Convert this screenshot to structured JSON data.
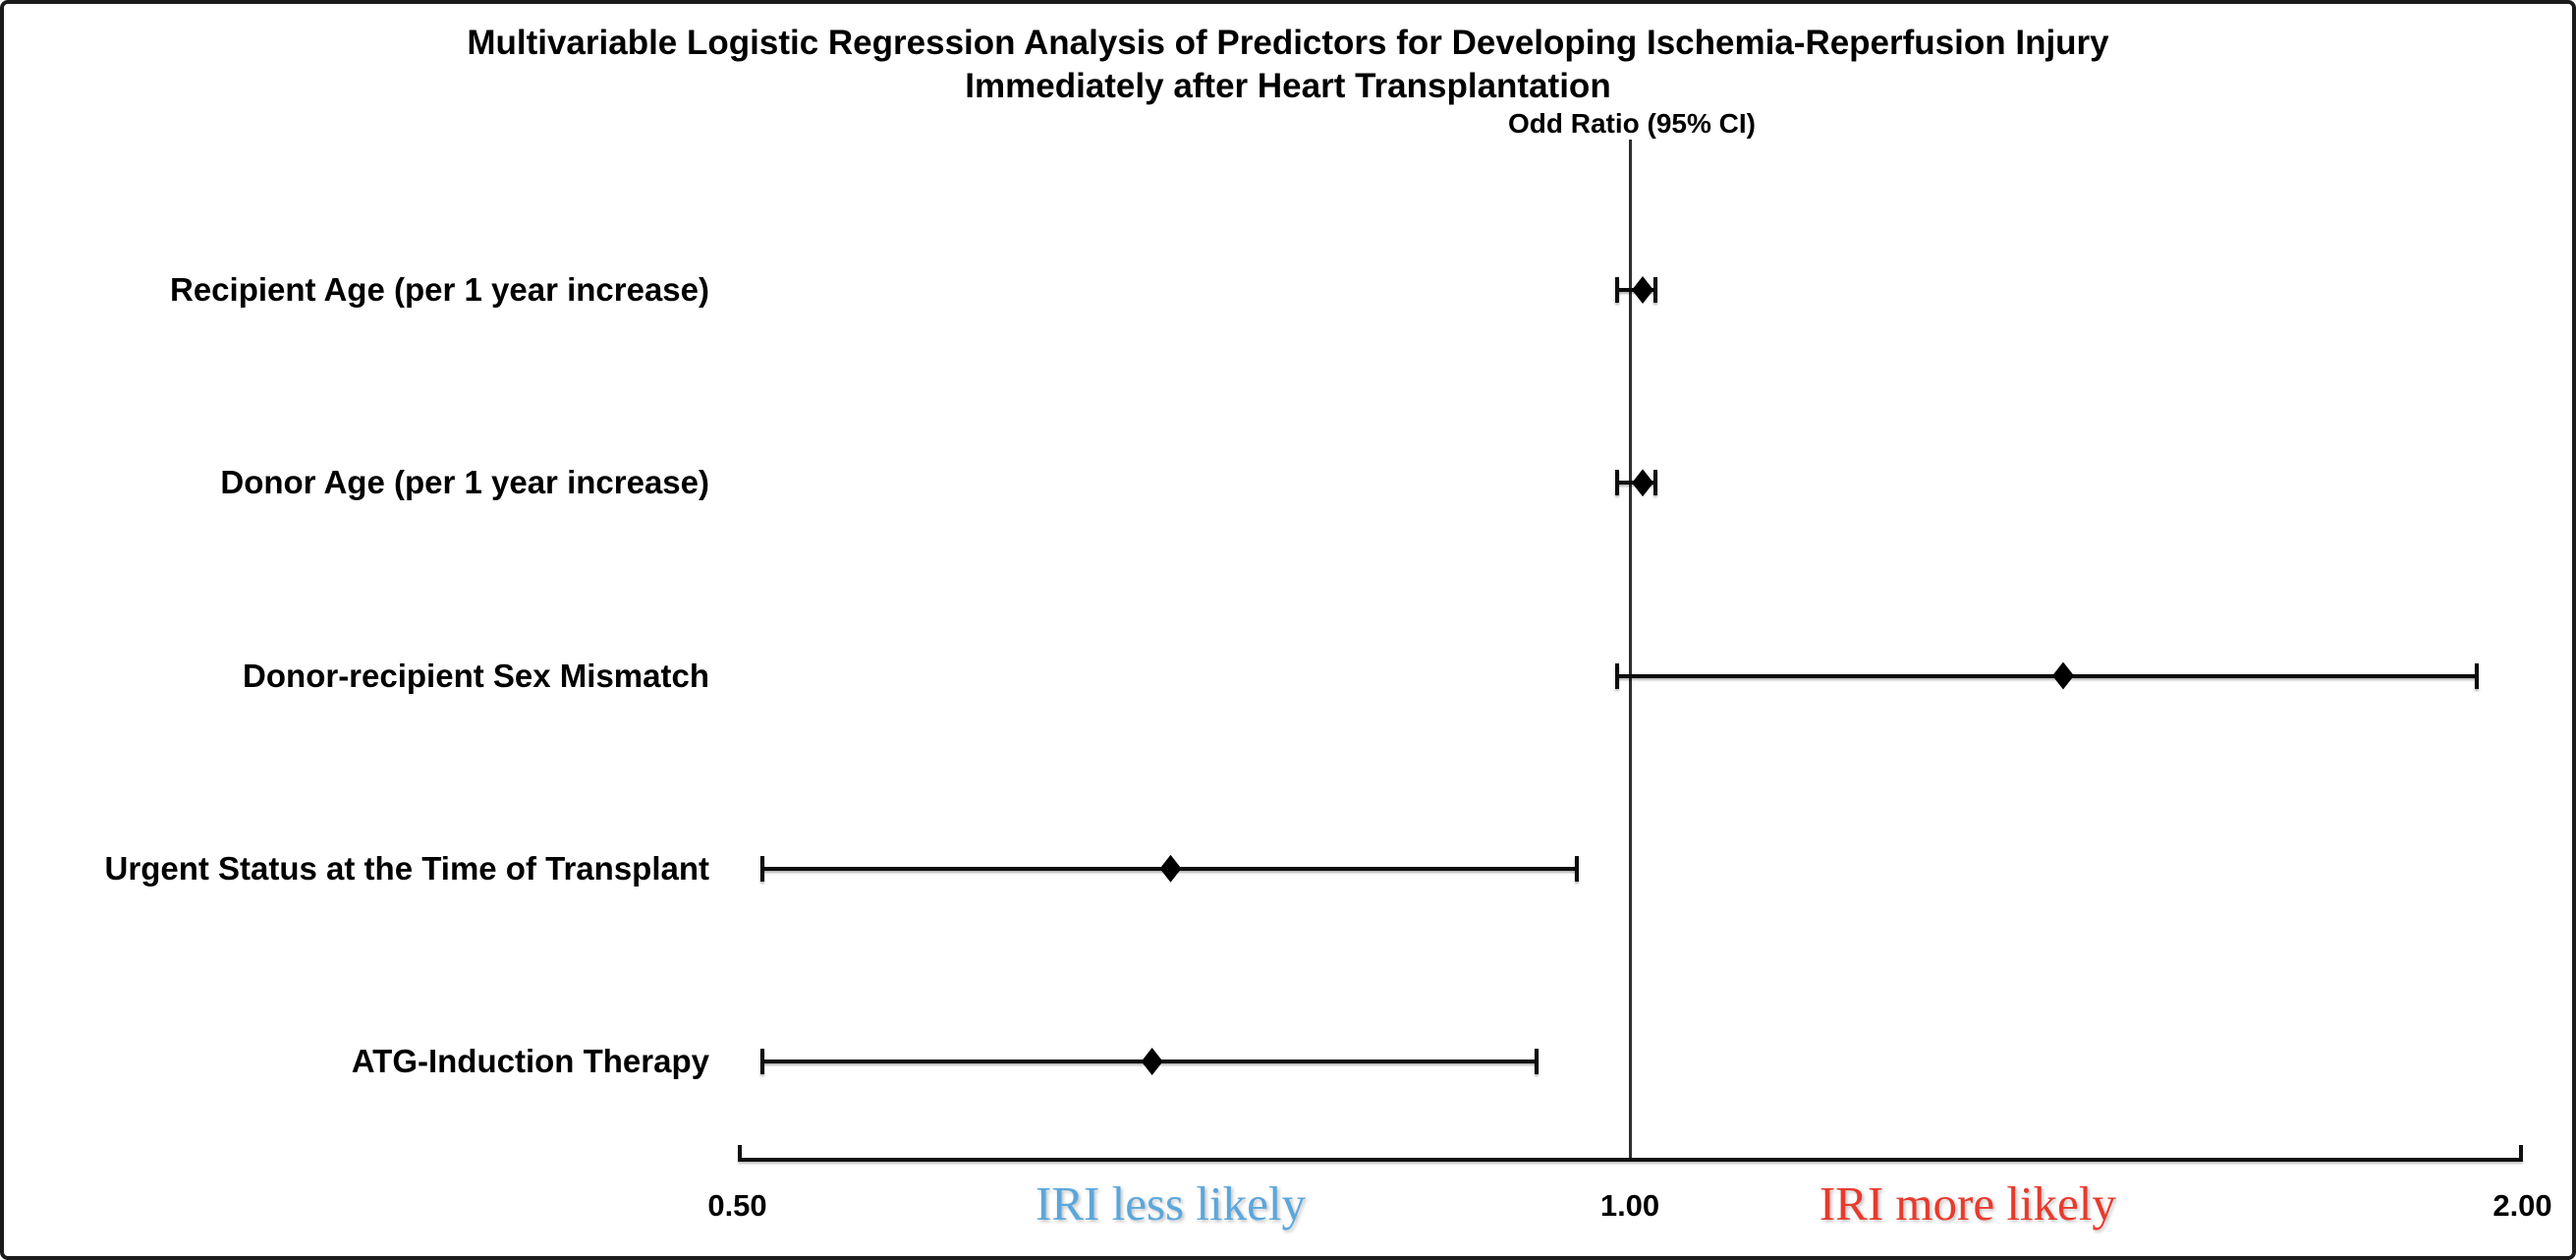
{
  "chart_data": {
    "type": "forest",
    "title_line1": "Multivariable Logistic Regression Analysis of Predictors for Developing Ischemia-Reperfusion Injury",
    "title_line2": "Immediately after Heart Transplantation",
    "axis_label": "Odd Ratio (95% CI)",
    "x_scale": "log2",
    "xlim": [
      0.5,
      2.0
    ],
    "reference_line_value": 1.0,
    "grid": "off",
    "x_ticks": [
      {
        "value": 0.5,
        "label": "0.50"
      },
      {
        "value": 1.0,
        "label": "1.00"
      },
      {
        "value": 2.0,
        "label": "2.00"
      }
    ],
    "rows": [
      {
        "label": "Recipient Age (per 1 year increase)",
        "or": 1.01,
        "ci_low": 0.99,
        "ci_high": 1.02
      },
      {
        "label": "Donor Age (per 1 year increase)",
        "or": 1.01,
        "ci_low": 0.99,
        "ci_high": 1.02
      },
      {
        "label": "Donor-recipient Sex Mismatch",
        "or": 1.4,
        "ci_low": 0.99,
        "ci_high": 1.93
      },
      {
        "label": "Urgent Status at the Time of Transplant",
        "or": 0.7,
        "ci_low": 0.51,
        "ci_high": 0.96
      },
      {
        "label": "ATG-Induction Therapy",
        "or": 0.69,
        "ci_low": 0.51,
        "ci_high": 0.93
      }
    ],
    "annotations": [
      {
        "text": "IRI less likely",
        "color": "#5aa7dc",
        "x_value": 0.7
      },
      {
        "text": "IRI more likely",
        "color": "#e63b2d",
        "x_value": 1.3
      }
    ],
    "marker_color": "#000000",
    "line_color": "#0d0d0d"
  }
}
